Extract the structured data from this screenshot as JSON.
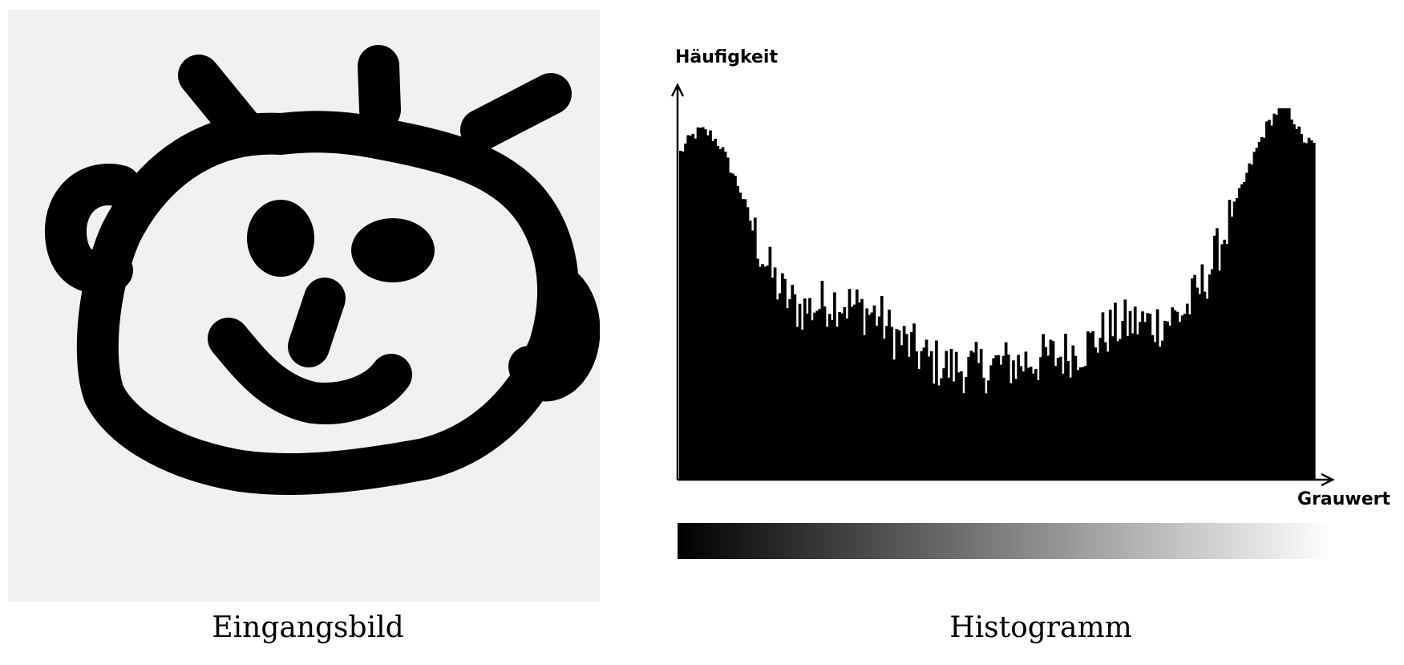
{
  "left_caption": "Eingangsbild",
  "right_caption": "Histogramm",
  "image_alt": "Schwarz-weiße Kinderzeichnung eines Gesichts auf verrauschtem hellem Hintergrund",
  "chart_data": {
    "type": "bar",
    "title": "Histogramm",
    "xlabel": "Grauwert",
    "ylabel": "Häufigkeit",
    "xlim": [
      0,
      255
    ],
    "ylim": [
      0,
      100
    ],
    "grid": false,
    "legend": "none",
    "x_tick_labels": [],
    "y_tick_labels": [],
    "bar_color": "#000000",
    "keypoints": [
      [
        0,
        88
      ],
      [
        4,
        92
      ],
      [
        8,
        94
      ],
      [
        12,
        93
      ],
      [
        16,
        90
      ],
      [
        20,
        84
      ],
      [
        24,
        78
      ],
      [
        28,
        70
      ],
      [
        32,
        62
      ],
      [
        36,
        56
      ],
      [
        40,
        51
      ],
      [
        44,
        48
      ],
      [
        48,
        46
      ],
      [
        52,
        46
      ],
      [
        56,
        47
      ],
      [
        60,
        48
      ],
      [
        64,
        48
      ],
      [
        68,
        47
      ],
      [
        72,
        46
      ],
      [
        76,
        45
      ],
      [
        80,
        44
      ],
      [
        84,
        40
      ],
      [
        88,
        38
      ],
      [
        92,
        36
      ],
      [
        96,
        34
      ],
      [
        100,
        32
      ],
      [
        104,
        31
      ],
      [
        108,
        30
      ],
      [
        112,
        30
      ],
      [
        116,
        30
      ],
      [
        120,
        30
      ],
      [
        124,
        30
      ],
      [
        128,
        31
      ],
      [
        132,
        31
      ],
      [
        136,
        31
      ],
      [
        140,
        32
      ],
      [
        144,
        32
      ],
      [
        148,
        33
      ],
      [
        152,
        33
      ],
      [
        156,
        34
      ],
      [
        160,
        35
      ],
      [
        164,
        36
      ],
      [
        168,
        38
      ],
      [
        172,
        40
      ],
      [
        176,
        41
      ],
      [
        180,
        42
      ],
      [
        184,
        42
      ],
      [
        188,
        42
      ],
      [
        192,
        42
      ],
      [
        196,
        43
      ],
      [
        200,
        44
      ],
      [
        204,
        46
      ],
      [
        208,
        50
      ],
      [
        212,
        55
      ],
      [
        216,
        61
      ],
      [
        220,
        68
      ],
      [
        224,
        75
      ],
      [
        228,
        82
      ],
      [
        232,
        89
      ],
      [
        236,
        95
      ],
      [
        240,
        99
      ],
      [
        244,
        100
      ],
      [
        247,
        97
      ],
      [
        250,
        92
      ],
      [
        255,
        90
      ]
    ],
    "noise_amplitude": 7,
    "noise_seed": 12345
  },
  "gradient": {
    "from": "#000000",
    "to": "#ffffff"
  }
}
